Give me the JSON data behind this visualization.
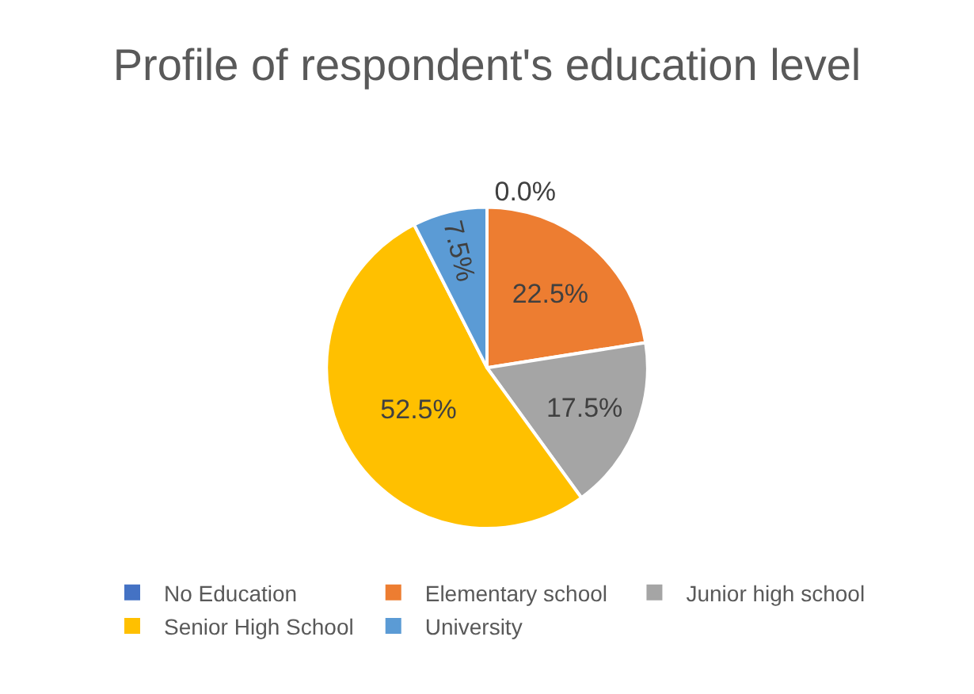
{
  "chart_data": {
    "type": "pie",
    "title": "Profile of respondent's education level",
    "categories": [
      "No Education",
      "Elementary school",
      "Junior high school",
      "Senior High School",
      "University"
    ],
    "values": [
      0.0,
      22.5,
      17.5,
      52.5,
      7.5
    ],
    "value_labels": [
      "0.0%",
      "22.5%",
      "17.5%",
      "52.5%",
      "7.5%"
    ],
    "colors": [
      "#4472c4",
      "#ed7d31",
      "#a5a5a5",
      "#ffc000",
      "#5b9bd5"
    ],
    "legend": "bottom"
  }
}
